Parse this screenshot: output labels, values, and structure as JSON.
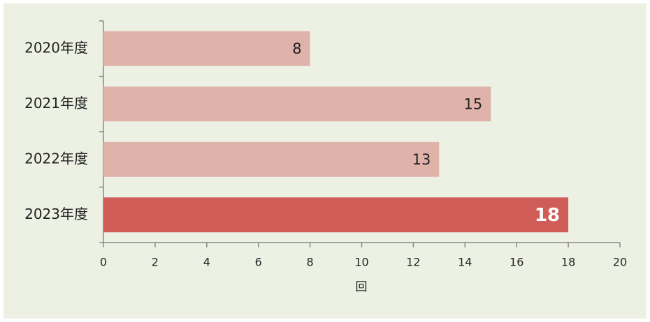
{
  "chart_data": {
    "type": "barh",
    "categories": [
      "2020年度",
      "2021年度",
      "2022年度",
      "2023年度"
    ],
    "values": [
      8,
      15,
      13,
      18
    ],
    "colors": [
      "#e0b3aa",
      "#e0b3aa",
      "#e0b3aa",
      "#d05c58"
    ],
    "value_label_colors": [
      "#222222",
      "#222222",
      "#222222",
      "#ffffff"
    ],
    "xlabel": "回",
    "xlim": [
      0,
      20
    ],
    "xticks": [
      0,
      2,
      4,
      6,
      8,
      10,
      12,
      14,
      16,
      18,
      20
    ],
    "grid": false
  }
}
